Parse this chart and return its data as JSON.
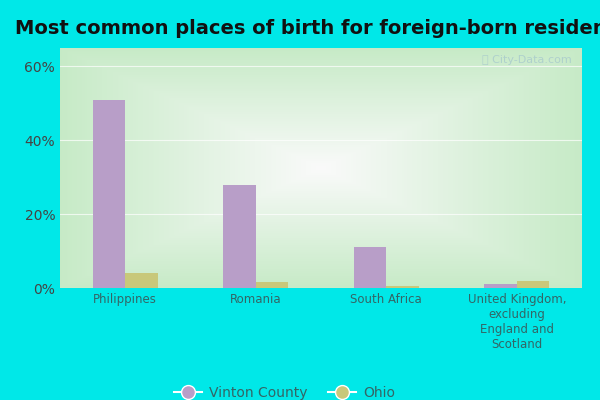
{
  "title": "Most common places of birth for foreign-born residents",
  "categories": [
    "Philippines",
    "Romania",
    "South Africa",
    "United Kingdom,\nexcluding\nEngland and\nScotland"
  ],
  "vinton_county": [
    51,
    28,
    11,
    1
  ],
  "ohio": [
    4,
    1.5,
    0.5,
    2
  ],
  "vinton_color": "#b89ec8",
  "ohio_color": "#c8c87a",
  "background_outer": "#00e8e8",
  "bar_width": 0.25,
  "ylim": [
    0,
    65
  ],
  "yticks": [
    0,
    20,
    40,
    60
  ],
  "ytick_labels": [
    "0%",
    "20%",
    "40%",
    "60%"
  ],
  "legend_labels": [
    "Vinton County",
    "Ohio"
  ],
  "title_fontsize": 14,
  "watermark": "City-Data.com"
}
